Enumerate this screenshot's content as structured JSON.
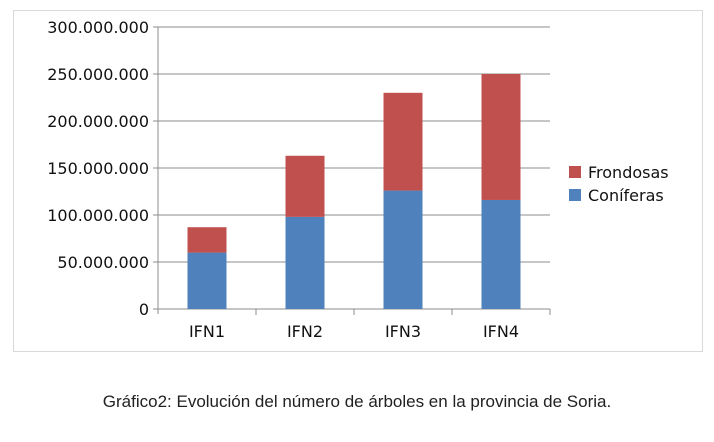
{
  "chart_data": {
    "type": "bar",
    "stacked": true,
    "categories": [
      "IFN1",
      "IFN2",
      "IFN3",
      "IFN4"
    ],
    "series": [
      {
        "name": "Coníferas",
        "color": "#4f81bd",
        "values": [
          60000000,
          98000000,
          126000000,
          116000000
        ]
      },
      {
        "name": "Frondosas",
        "color": "#c0504d",
        "values": [
          27000000,
          65000000,
          104000000,
          134000000
        ]
      }
    ],
    "ylim": [
      0,
      300000000
    ],
    "yticks": [
      "0",
      "50.000.000",
      "100.000.000",
      "150.000.000",
      "200.000.000",
      "250.000.000",
      "300.000.000"
    ],
    "grid": true,
    "legend": "right",
    "xlabel": "",
    "ylabel": ""
  },
  "caption": "Gráfico2: Evolución del número de árboles en la provincia de Soria."
}
